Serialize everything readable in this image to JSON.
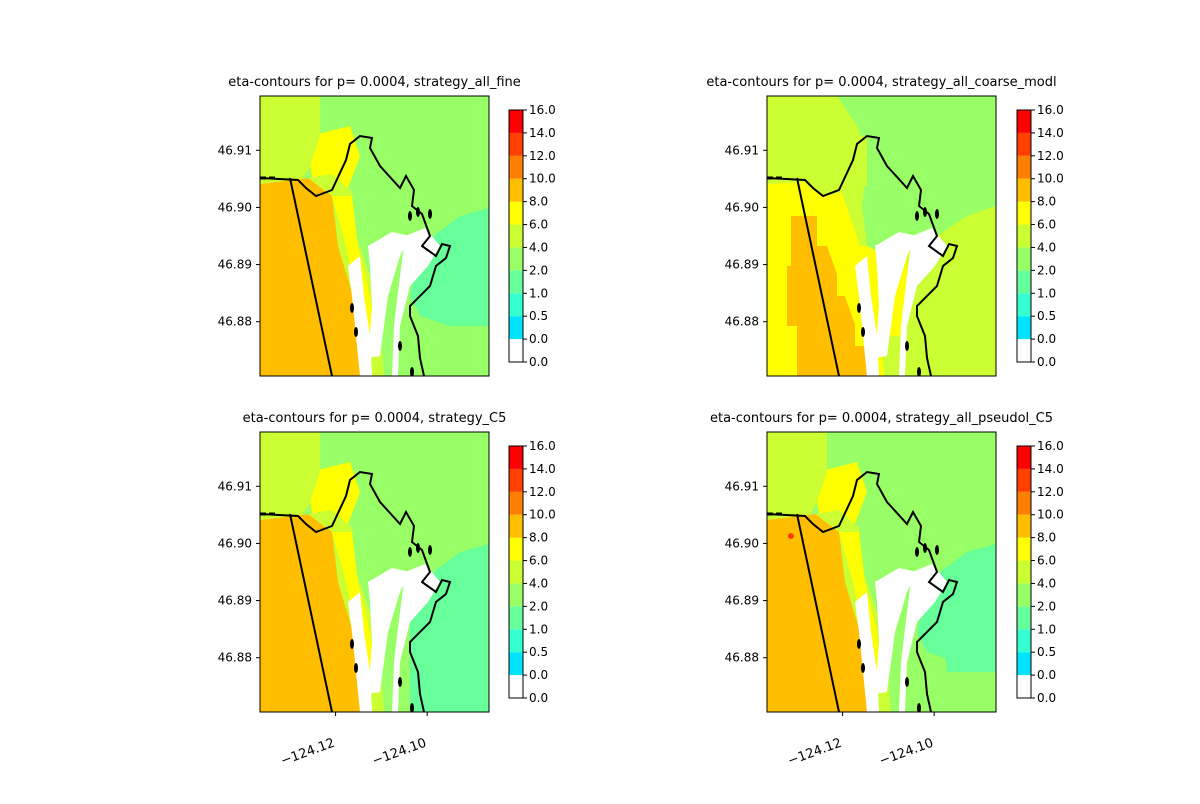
{
  "figure": {
    "layout": "2x2 grid of contour maps with colorbars"
  },
  "colormap": {
    "levels": [
      "0.0",
      "0.0",
      "0.5",
      "1.0",
      "2.0",
      "4.0",
      "6.0",
      "8.0",
      "10.0",
      "12.0",
      "14.0",
      "16.0"
    ],
    "band_colors": [
      "#ffffff",
      "#00e5ff",
      "#33ffd0",
      "#66ff99",
      "#99ff66",
      "#ccff33",
      "#ffff00",
      "#ffbf00",
      "#ff8000",
      "#ff4000",
      "#ff0000"
    ],
    "legend": {
      "white": "0.0-0.0",
      "cyan": "0.0-0.5",
      "seafoam": "1.0-2.0",
      "light-green": "2.0-4.0",
      "yellow-green": "4.0-6.0",
      "yellow": "6.0-8.0",
      "orange": "8.0-10.0"
    }
  },
  "chart_data": [
    {
      "type": "heatmap",
      "title": "eta-contours for p= 0.0004, strategy_all_fine",
      "yticks": [
        "46.91",
        "46.90",
        "46.89",
        "46.88"
      ],
      "xticks": [],
      "colorbar_levels": [
        "0.0",
        "0.0",
        "0.5",
        "1.0",
        "2.0",
        "4.0",
        "6.0",
        "8.0",
        "10.0",
        "12.0",
        "14.0",
        "16.0"
      ],
      "ylim": [
        46.8705,
        46.9195
      ],
      "xlim": [
        -124.1365,
        -124.0865
      ],
      "dominant_bands": [
        "8.0-10.0 offshore",
        "6.0-8.0 nearshore",
        "4.0-6.0 north bay",
        "2.0-4.0 bay",
        "1.0-2.0 east bay"
      ]
    },
    {
      "type": "heatmap",
      "title": "eta-contours for p= 0.0004, strategy_all_coarse_modl",
      "yticks": [
        "46.91",
        "46.90",
        "46.89",
        "46.88"
      ],
      "xticks": [],
      "colorbar_levels": [
        "0.0",
        "0.0",
        "0.5",
        "1.0",
        "2.0",
        "4.0",
        "6.0",
        "8.0",
        "10.0",
        "12.0",
        "14.0",
        "16.0"
      ],
      "ylim": [
        46.8705,
        46.9195
      ],
      "xlim": [
        -124.1365,
        -124.0865
      ],
      "dominant_bands": [
        "6.0-8.0 offshore",
        "8.0-10.0 blocky channel",
        "4.0-6.0 central",
        "2.0-4.0 bay"
      ]
    },
    {
      "type": "heatmap",
      "title": "eta-contours for p= 0.0004, strategy_C5",
      "yticks": [
        "46.91",
        "46.90",
        "46.89",
        "46.88"
      ],
      "xticks": [
        "−124.12",
        "−124.10"
      ],
      "colorbar_levels": [
        "0.0",
        "0.0",
        "0.5",
        "1.0",
        "2.0",
        "4.0",
        "6.0",
        "8.0",
        "10.0",
        "12.0",
        "14.0",
        "16.0"
      ],
      "ylim": [
        46.8705,
        46.9195
      ],
      "xlim": [
        -124.1365,
        -124.0865
      ],
      "dominant_bands": [
        "8.0-10.0 offshore",
        "6.0-8.0 nearshore",
        "4.0-6.0 north bay",
        "2.0-4.0 bay",
        "1.0-2.0 east bay"
      ]
    },
    {
      "type": "heatmap",
      "title": "eta-contours for p= 0.0004, strategy_all_pseudol_C5",
      "yticks": [
        "46.91",
        "46.90",
        "46.89",
        "46.88"
      ],
      "xticks": [
        "−124.12",
        "−124.10"
      ],
      "colorbar_levels": [
        "0.0",
        "0.0",
        "0.5",
        "1.0",
        "2.0",
        "4.0",
        "6.0",
        "8.0",
        "10.0",
        "12.0",
        "14.0",
        "16.0"
      ],
      "ylim": [
        46.8705,
        46.9195
      ],
      "xlim": [
        -124.1365,
        -124.0865
      ],
      "dominant_bands": [
        "8.0-10.0 offshore",
        "6.0-8.0 nearshore",
        "4.0-6.0 north bay",
        "2.0-4.0 bay",
        "1.0-2.0 east bay"
      ]
    }
  ]
}
